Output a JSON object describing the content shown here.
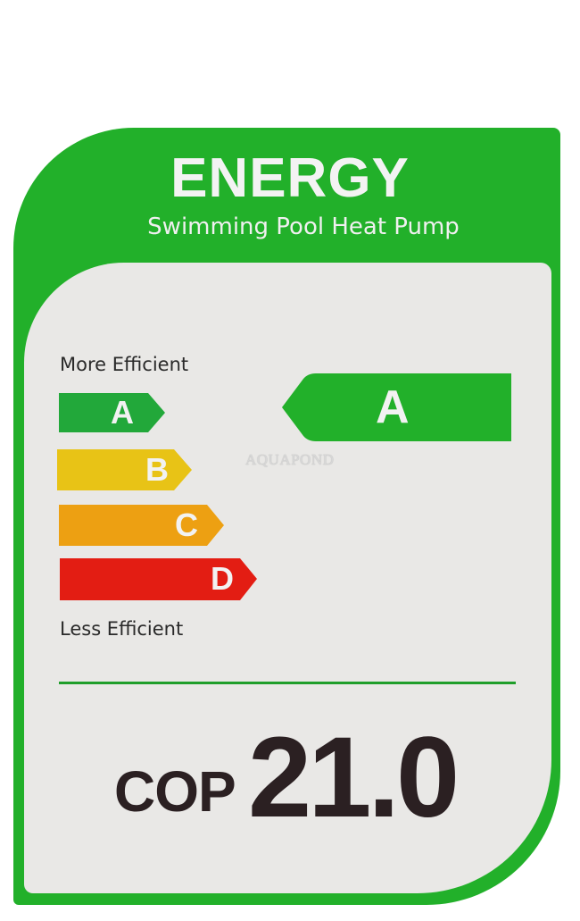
{
  "label": {
    "title": "ENERGY",
    "subtitle": "Swimming Pool Heat Pump",
    "more_efficient": "More Efficient",
    "less_efficient": "Less Efficient",
    "classes": [
      {
        "letter": "A",
        "color": "#22a83a"
      },
      {
        "letter": "B",
        "color": "#e8c316"
      },
      {
        "letter": "C",
        "color": "#eda012"
      },
      {
        "letter": "D",
        "color": "#e31d13"
      }
    ],
    "rating": {
      "letter": "A",
      "color": "#22b02a"
    },
    "watermark": "AQUAPOND",
    "cop_label": "COP",
    "cop_value": "21.0",
    "colors": {
      "frame": "#22b02a",
      "panel": "#e9e8e6",
      "text": "#2b2022"
    }
  }
}
